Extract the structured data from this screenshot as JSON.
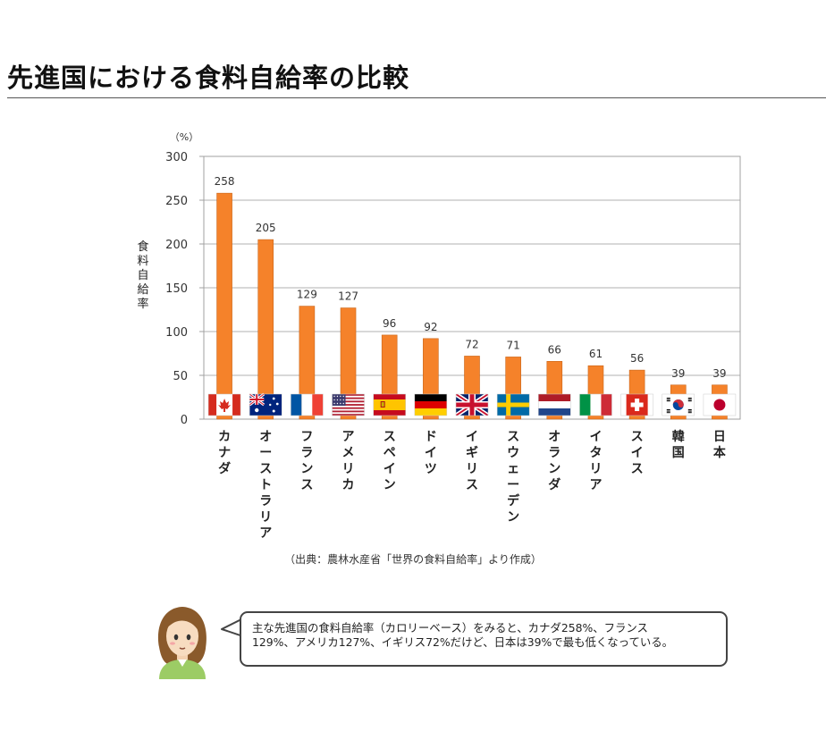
{
  "page": {
    "title": "先進国における食料自給率の比較",
    "source": "（出典：農林水産省「世界の食料自給率」より作成）"
  },
  "speech": {
    "line1": "主な先進国の食料自給率（カロリーベース）をみると、カナダ258%、フランス",
    "line2": "129%、アメリカ127%、イギリス72%だけど、日本は39%で最も低くなっている。"
  },
  "colors": {
    "bar": "#f5822a",
    "bar_edge": "#c9651a",
    "grid": "#b0b0b0",
    "frame": "#a0a0a0"
  },
  "chart_data": {
    "type": "bar",
    "unit_label": "（%）",
    "ylabel": "食料自給率",
    "ylim": [
      0,
      300
    ],
    "yticks": [
      0,
      50,
      100,
      150,
      200,
      250,
      300
    ],
    "grid": "horizontal",
    "categories": [
      "カナダ",
      "オーストラリア",
      "フランス",
      "アメリカ",
      "スペイン",
      "ドイツ",
      "イギリス",
      "スウェーデン",
      "オランダ",
      "イタリア",
      "スイス",
      "韓国",
      "日本"
    ],
    "values": [
      258,
      205,
      129,
      127,
      96,
      92,
      72,
      71,
      66,
      61,
      56,
      39,
      39
    ],
    "flags": [
      "canada-flag-icon",
      "australia-flag-icon",
      "france-flag-icon",
      "usa-flag-icon",
      "spain-flag-icon",
      "germany-flag-icon",
      "uk-flag-icon",
      "sweden-flag-icon",
      "netherlands-flag-icon",
      "italy-flag-icon",
      "switzerland-flag-icon",
      "korea-flag-icon",
      "japan-flag-icon"
    ]
  }
}
